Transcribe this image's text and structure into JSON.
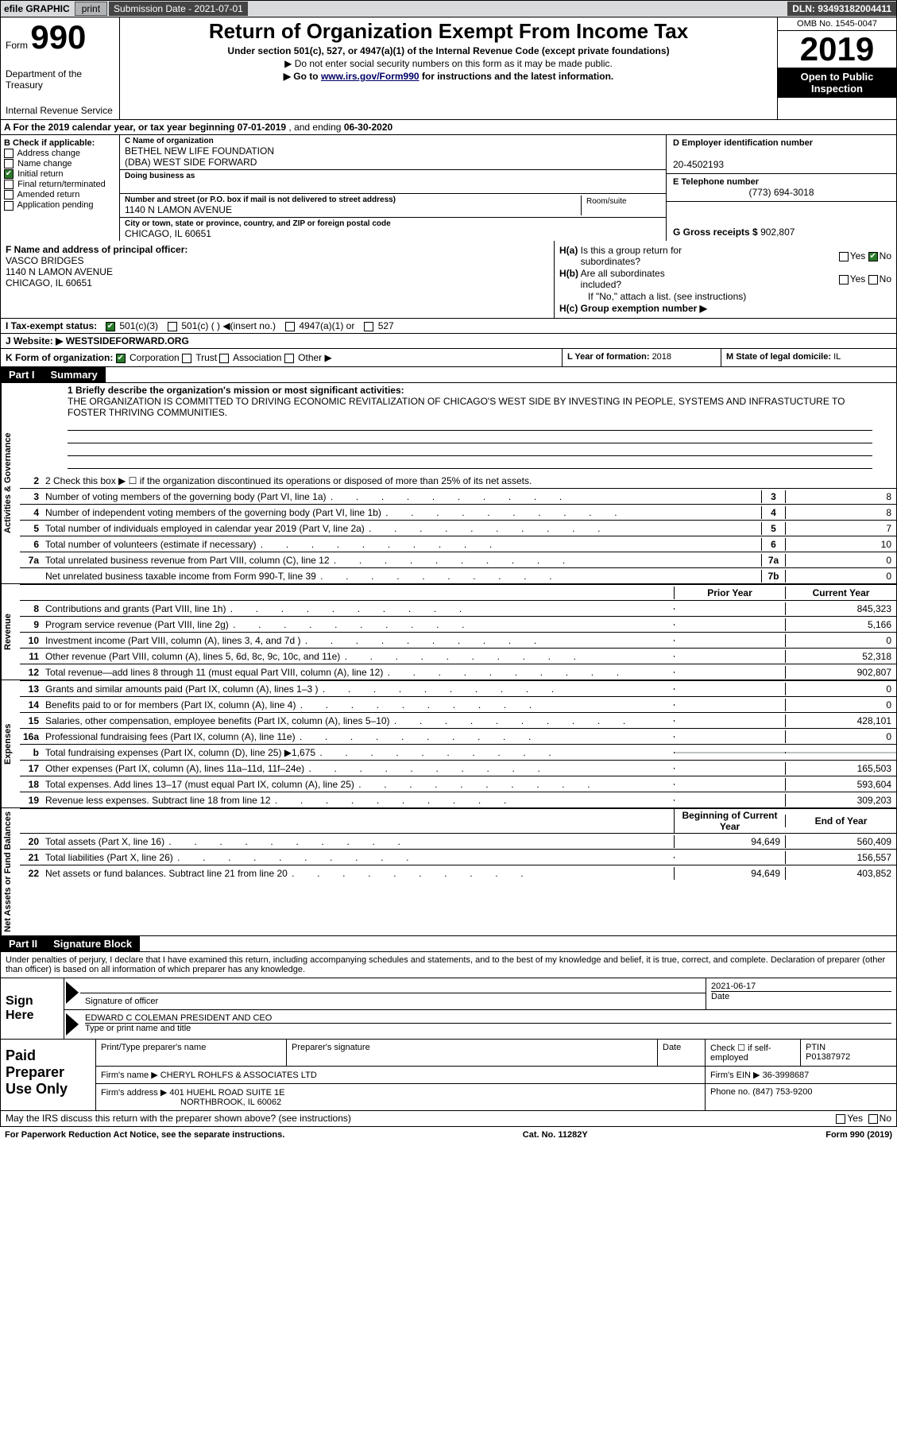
{
  "topbar": {
    "efile": "efile GRAPHIC",
    "print_btn": "print",
    "sub_label": "Submission Date - ",
    "sub_date": "2021-07-01",
    "dln": "DLN: 93493182004411"
  },
  "header": {
    "form_label": "Form",
    "form_num": "990",
    "dept1": "Department of the Treasury",
    "dept2": "Internal Revenue Service",
    "title": "Return of Organization Exempt From Income Tax",
    "subtitle": "Under section 501(c), 527, or 4947(a)(1) of the Internal Revenue Code (except private foundations)",
    "note1": "▶ Do not enter social security numbers on this form as it may be made public.",
    "note2_pre": "▶ Go to ",
    "note2_link": "www.irs.gov/Form990",
    "note2_post": " for instructions and the latest information.",
    "omb": "OMB No. 1545-0047",
    "year": "2019",
    "open": "Open to Public Inspection"
  },
  "a_line": {
    "text": "A For the 2019 calendar year, or tax year beginning ",
    "begin": "07-01-2019",
    "mid": "   , and ending ",
    "end": "06-30-2020"
  },
  "b": {
    "label": "B Check if applicable:",
    "opts": [
      "Address change",
      "Name change",
      "Initial return",
      "Final return/terminated",
      "Amended return",
      "Application pending"
    ],
    "checked_idx": 2
  },
  "c": {
    "name_lbl": "C Name of organization",
    "name": "BETHEL NEW LIFE FOUNDATION",
    "dba": "(DBA) WEST SIDE FORWARD",
    "dba_lbl": "Doing business as",
    "addr_lbl": "Number and street (or P.O. box if mail is not delivered to street address)",
    "addr": "1140 N LAMON AVENUE",
    "room_lbl": "Room/suite",
    "city_lbl": "City or town, state or province, country, and ZIP or foreign postal code",
    "city": "CHICAGO, IL  60651"
  },
  "d": {
    "ein_lbl": "D Employer identification number",
    "ein": "20-4502193",
    "tel_lbl": "E Telephone number",
    "tel": "(773) 694-3018",
    "gross_lbl": "G Gross receipts $ ",
    "gross": "902,807"
  },
  "f": {
    "lbl": "F  Name and address of principal officer:",
    "name": "VASCO BRIDGES",
    "addr1": "1140 N LAMON AVENUE",
    "addr2": "CHICAGO, IL  60651"
  },
  "h": {
    "a_lbl": "H(a)  Is this a group return for subordinates?",
    "b_lbl": "H(b)  Are all subordinates included?",
    "b_note": "If \"No,\" attach a list. (see instructions)",
    "c_lbl": "H(c)  Group exemption number ▶",
    "yes": "Yes",
    "no": "No"
  },
  "i": {
    "lbl": "I    Tax-exempt status:",
    "o1": "501(c)(3)",
    "o2": "501(c) (   ) ◀(insert no.)",
    "o3": "4947(a)(1) or",
    "o4": "527"
  },
  "j": {
    "lbl": "J    Website: ▶",
    "val": " WESTSIDEFORWARD.ORG"
  },
  "k": {
    "lbl": "K Form of organization:",
    "o1": "Corporation",
    "o2": "Trust",
    "o3": "Association",
    "o4": "Other ▶",
    "l_lbl": "L Year of formation: ",
    "l_val": "2018",
    "m_lbl": "M State of legal domicile: ",
    "m_val": "IL"
  },
  "part1": {
    "hdr": "Part I",
    "title": "Summary"
  },
  "mission": {
    "lbl": "1  Briefly describe the organization's mission or most significant activities:",
    "text": "THE ORGANIZATION IS COMMITTED TO DRIVING ECONOMIC REVITALIZATION OF CHICAGO'S WEST SIDE BY INVESTING IN PEOPLE, SYSTEMS AND INFRASTUCTURE TO FOSTER THRIVING COMMUNITIES."
  },
  "line2": "2    Check this box ▶ ☐  if the organization discontinued its operations or disposed of more than 25% of its net assets.",
  "lines_gov": [
    {
      "n": "3",
      "t": "Number of voting members of the governing body (Part VI, line 1a)",
      "box": "3",
      "v": "8"
    },
    {
      "n": "4",
      "t": "Number of independent voting members of the governing body (Part VI, line 1b)",
      "box": "4",
      "v": "8"
    },
    {
      "n": "5",
      "t": "Total number of individuals employed in calendar year 2019 (Part V, line 2a)",
      "box": "5",
      "v": "7"
    },
    {
      "n": "6",
      "t": "Total number of volunteers (estimate if necessary)",
      "box": "6",
      "v": "10"
    },
    {
      "n": "7a",
      "t": "Total unrelated business revenue from Part VIII, column (C), line 12",
      "box": "7a",
      "v": "0"
    },
    {
      "n": "",
      "t": "Net unrelated business taxable income from Form 990-T, line 39",
      "box": "7b",
      "v": "0"
    }
  ],
  "col_hdrs": {
    "prior": "Prior Year",
    "curr": "Current Year"
  },
  "lines_rev": [
    {
      "n": "8",
      "t": "Contributions and grants (Part VIII, line 1h)",
      "p": "",
      "c": "845,323"
    },
    {
      "n": "9",
      "t": "Program service revenue (Part VIII, line 2g)",
      "p": "",
      "c": "5,166"
    },
    {
      "n": "10",
      "t": "Investment income (Part VIII, column (A), lines 3, 4, and 7d )",
      "p": "",
      "c": "0"
    },
    {
      "n": "11",
      "t": "Other revenue (Part VIII, column (A), lines 5, 6d, 8c, 9c, 10c, and 11e)",
      "p": "",
      "c": "52,318"
    },
    {
      "n": "12",
      "t": "Total revenue—add lines 8 through 11 (must equal Part VIII, column (A), line 12)",
      "p": "",
      "c": "902,807"
    }
  ],
  "lines_exp": [
    {
      "n": "13",
      "t": "Grants and similar amounts paid (Part IX, column (A), lines 1–3 )",
      "p": "",
      "c": "0"
    },
    {
      "n": "14",
      "t": "Benefits paid to or for members (Part IX, column (A), line 4)",
      "p": "",
      "c": "0"
    },
    {
      "n": "15",
      "t": "Salaries, other compensation, employee benefits (Part IX, column (A), lines 5–10)",
      "p": "",
      "c": "428,101"
    },
    {
      "n": "16a",
      "t": "Professional fundraising fees (Part IX, column (A), line 11e)",
      "p": "",
      "c": "0"
    },
    {
      "n": "b",
      "t": "Total fundraising expenses (Part IX, column (D), line 25) ▶1,675",
      "p": "shade",
      "c": "shade"
    },
    {
      "n": "17",
      "t": "Other expenses (Part IX, column (A), lines 11a–11d, 11f–24e)",
      "p": "",
      "c": "165,503"
    },
    {
      "n": "18",
      "t": "Total expenses. Add lines 13–17 (must equal Part IX, column (A), line 25)",
      "p": "",
      "c": "593,604"
    },
    {
      "n": "19",
      "t": "Revenue less expenses. Subtract line 18 from line 12",
      "p": "",
      "c": "309,203"
    }
  ],
  "col_hdrs2": {
    "prior": "Beginning of Current Year",
    "curr": "End of Year"
  },
  "lines_net": [
    {
      "n": "20",
      "t": "Total assets (Part X, line 16)",
      "p": "94,649",
      "c": "560,409"
    },
    {
      "n": "21",
      "t": "Total liabilities (Part X, line 26)",
      "p": "",
      "c": "156,557"
    },
    {
      "n": "22",
      "t": "Net assets or fund balances. Subtract line 21 from line 20",
      "p": "94,649",
      "c": "403,852"
    }
  ],
  "vtabs": {
    "gov": "Activities & Governance",
    "rev": "Revenue",
    "exp": "Expenses",
    "net": "Net Assets or Fund Balances"
  },
  "part2": {
    "hdr": "Part II",
    "title": "Signature Block"
  },
  "penalty": "Under penalties of perjury, I declare that I have examined this return, including accompanying schedules and statements, and to the best of my knowledge and belief, it is true, correct, and complete. Declaration of preparer (other than officer) is based on all information of which preparer has any knowledge.",
  "sign": {
    "here": "Sign Here",
    "sig_lbl": "Signature of officer",
    "date_lbl": "Date",
    "date": "2021-06-17",
    "name": "EDWARD C COLEMAN  PRESIDENT AND CEO",
    "name_lbl": "Type or print name and title"
  },
  "prep": {
    "hdr": "Paid Preparer Use Only",
    "c1": "Print/Type preparer's name",
    "c2": "Preparer's signature",
    "c3": "Date",
    "c4a": "Check ☐ if self-employed",
    "c5a": "PTIN",
    "c5b": "P01387972",
    "firm_lbl": "Firm's name    ▶ ",
    "firm": "CHERYL ROHLFS & ASSOCIATES LTD",
    "ein_lbl": "Firm's EIN ▶ ",
    "ein": "36-3998687",
    "addr_lbl": "Firm's address ▶ ",
    "addr1": "401 HUEHL ROAD SUITE 1E",
    "addr2": "NORTHBROOK, IL  60062",
    "phone_lbl": "Phone no. ",
    "phone": "(847) 753-9200"
  },
  "discuss": "May the IRS discuss this return with the preparer shown above? (see instructions)",
  "footer": {
    "left": "For Paperwork Reduction Act Notice, see the separate instructions.",
    "mid": "Cat. No. 11282Y",
    "right": "Form 990 (2019)"
  }
}
